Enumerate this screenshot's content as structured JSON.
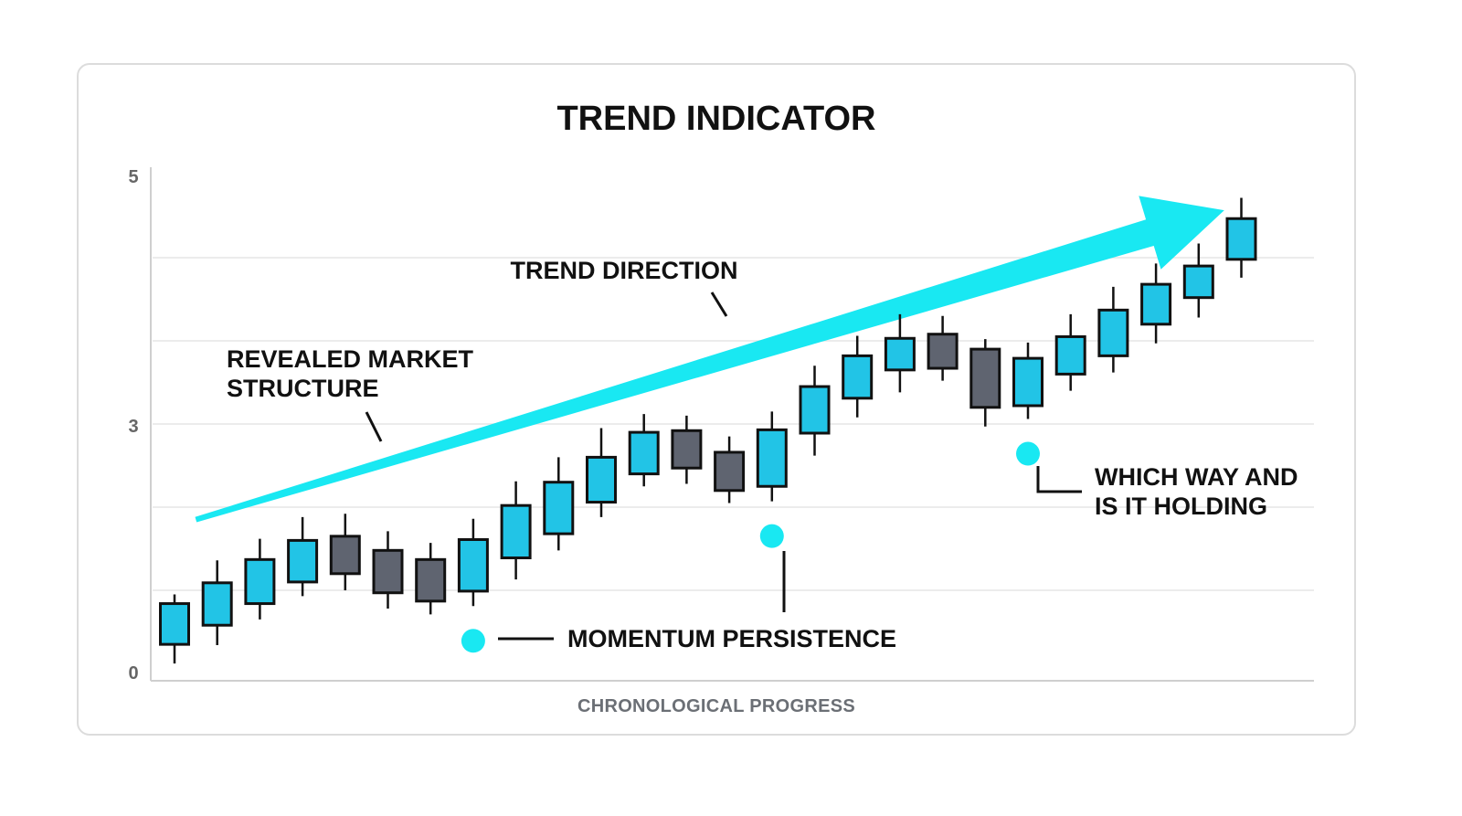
{
  "chart_data": {
    "type": "candlestick",
    "title": "TREND INDICATOR",
    "xlabel": "CHRONOLOGICAL PROGRESS",
    "ylabel": "",
    "y_ticks": [
      "0",
      "3",
      "5"
    ],
    "grid": true,
    "colors": {
      "up": "#22c4e6",
      "down": "#5f6470",
      "arrow": "#19e8f2",
      "marker": "#19e8f2",
      "grid": "#e6e6e6",
      "axis": "#cfcfcf"
    },
    "candles": [
      {
        "open": 0.35,
        "close": 0.84,
        "high": 0.95,
        "low": 0.12,
        "dir": "up"
      },
      {
        "open": 0.58,
        "close": 1.09,
        "high": 1.36,
        "low": 0.34,
        "dir": "up"
      },
      {
        "open": 0.84,
        "close": 1.37,
        "high": 1.62,
        "low": 0.65,
        "dir": "up"
      },
      {
        "open": 1.1,
        "close": 1.6,
        "high": 1.88,
        "low": 0.93,
        "dir": "up"
      },
      {
        "open": 1.65,
        "close": 1.2,
        "high": 1.92,
        "low": 1.0,
        "dir": "down"
      },
      {
        "open": 1.48,
        "close": 0.97,
        "high": 1.71,
        "low": 0.78,
        "dir": "down"
      },
      {
        "open": 1.37,
        "close": 0.87,
        "high": 1.57,
        "low": 0.71,
        "dir": "down"
      },
      {
        "open": 0.99,
        "close": 1.61,
        "high": 1.86,
        "low": 0.81,
        "dir": "up"
      },
      {
        "open": 1.39,
        "close": 2.02,
        "high": 2.31,
        "low": 1.13,
        "dir": "up"
      },
      {
        "open": 1.68,
        "close": 2.3,
        "high": 2.6,
        "low": 1.48,
        "dir": "up"
      },
      {
        "open": 2.06,
        "close": 2.6,
        "high": 2.95,
        "low": 1.88,
        "dir": "up"
      },
      {
        "open": 2.4,
        "close": 2.9,
        "high": 3.12,
        "low": 2.25,
        "dir": "up"
      },
      {
        "open": 2.92,
        "close": 2.47,
        "high": 3.1,
        "low": 2.28,
        "dir": "down"
      },
      {
        "open": 2.66,
        "close": 2.2,
        "high": 2.85,
        "low": 2.05,
        "dir": "down"
      },
      {
        "open": 2.25,
        "close": 2.93,
        "high": 3.15,
        "low": 2.07,
        "dir": "up"
      },
      {
        "open": 2.89,
        "close": 3.45,
        "high": 3.7,
        "low": 2.62,
        "dir": "up"
      },
      {
        "open": 3.31,
        "close": 3.82,
        "high": 4.06,
        "low": 3.08,
        "dir": "up"
      },
      {
        "open": 3.65,
        "close": 4.03,
        "high": 4.32,
        "low": 3.38,
        "dir": "up"
      },
      {
        "open": 4.08,
        "close": 3.67,
        "high": 4.3,
        "low": 3.52,
        "dir": "down"
      },
      {
        "open": 3.9,
        "close": 3.2,
        "high": 4.02,
        "low": 2.97,
        "dir": "down"
      },
      {
        "open": 3.22,
        "close": 3.79,
        "high": 3.98,
        "low": 3.06,
        "dir": "up"
      },
      {
        "open": 3.6,
        "close": 4.05,
        "high": 4.32,
        "low": 3.4,
        "dir": "up"
      },
      {
        "open": 3.82,
        "close": 4.37,
        "high": 4.65,
        "low": 3.62,
        "dir": "up"
      },
      {
        "open": 4.2,
        "close": 4.68,
        "high": 4.93,
        "low": 3.97,
        "dir": "up"
      },
      {
        "open": 4.52,
        "close": 4.9,
        "high": 5.17,
        "low": 4.28,
        "dir": "up"
      },
      {
        "open": 4.98,
        "close": 5.47,
        "high": 5.72,
        "low": 4.76,
        "dir": "up"
      }
    ],
    "trend_arrow": {
      "label": "TREND DIRECTION",
      "start": [
        0.5,
        1.85
      ],
      "end": [
        24.6,
        5.57
      ]
    },
    "annotations": [
      {
        "lines": [
          "REVEALED MARKET",
          "STRUCTURE"
        ]
      },
      {
        "lines": [
          "MOMENTUM PERSISTENCE"
        ],
        "marker_candle": 7
      },
      {
        "lines": [],
        "marker_candle": 14
      },
      {
        "lines": [
          "WHICH WAY AND",
          "IS IT HOLDING"
        ],
        "marker_candle": 20
      }
    ]
  }
}
